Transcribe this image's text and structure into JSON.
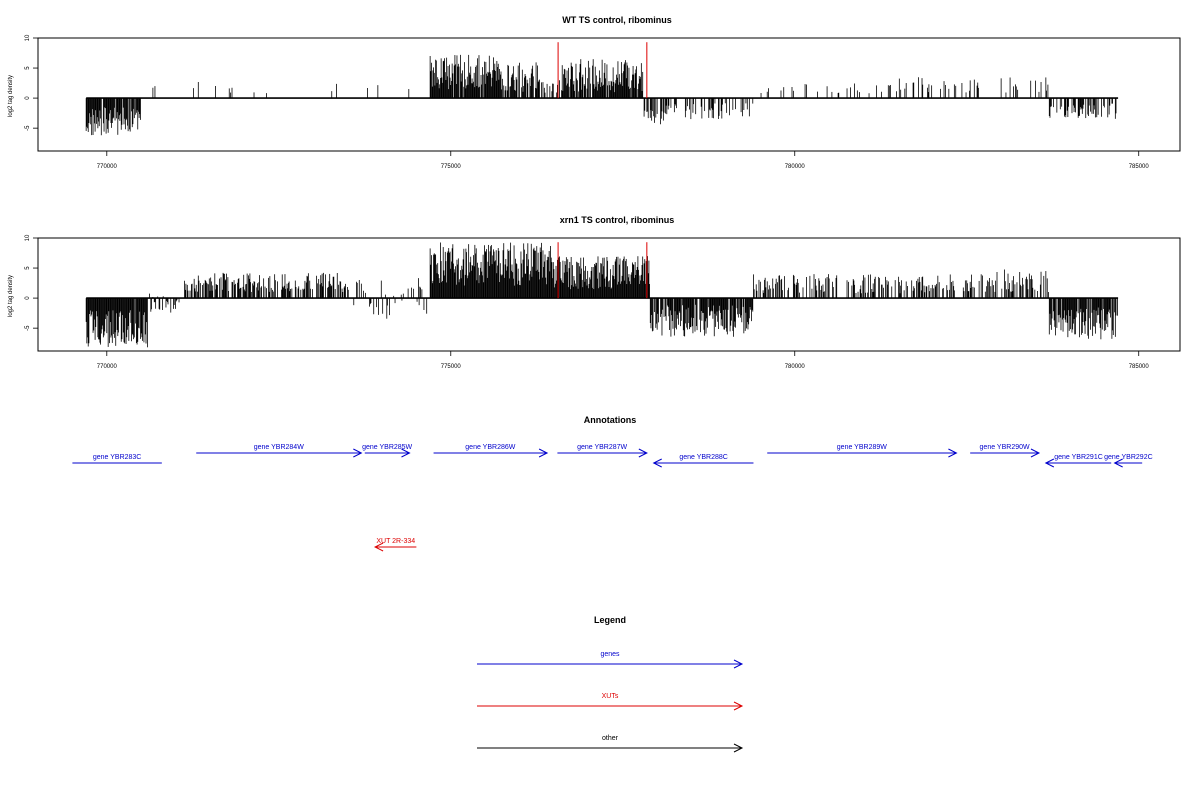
{
  "chart_data": [
    {
      "type": "bar",
      "title": "WT TS control, ribominus",
      "xlabel": "",
      "ylabel": "log2 tag density",
      "xlim": [
        769000,
        785600
      ],
      "ylim": [
        -8.8,
        10
      ],
      "x_ticks": [
        "770000",
        "775000",
        "780000",
        "785000"
      ],
      "y_ticks": [
        "10",
        "5",
        "0",
        "-5"
      ],
      "data_range": [
        769700,
        784700
      ],
      "markers": [
        776560,
        777850
      ],
      "marker_color": "#dd0000",
      "marker_height": 9.3,
      "regions": [
        {
          "start": 769700,
          "end": 770500,
          "density": 0.9,
          "min": -6.5,
          "max": -1.5
        },
        {
          "start": 770500,
          "end": 774700,
          "density": 0.04,
          "min": 0.8,
          "max": 2.8
        },
        {
          "start": 774700,
          "end": 775700,
          "density": 0.95,
          "min": 1.5,
          "max": 7.2
        },
        {
          "start": 775700,
          "end": 776300,
          "density": 0.8,
          "min": 1.0,
          "max": 6.0
        },
        {
          "start": 776300,
          "end": 776600,
          "density": 0.3,
          "min": 0.5,
          "max": 3.0
        },
        {
          "start": 776600,
          "end": 777800,
          "density": 0.85,
          "min": 1.0,
          "max": 6.5
        },
        {
          "start": 777800,
          "end": 778100,
          "density": 0.6,
          "min": -4.5,
          "max": -1.0
        },
        {
          "start": 778100,
          "end": 779400,
          "density": 0.35,
          "min": -3.5,
          "max": -0.8
        },
        {
          "start": 779400,
          "end": 781500,
          "density": 0.12,
          "min": 0.8,
          "max": 2.5
        },
        {
          "start": 781500,
          "end": 783700,
          "density": 0.18,
          "min": 0.8,
          "max": 3.5
        },
        {
          "start": 783700,
          "end": 784700,
          "density": 0.55,
          "min": -3.5,
          "max": -0.8
        }
      ]
    },
    {
      "type": "bar",
      "title": "xrn1 TS control, ribominus",
      "xlabel": "",
      "ylabel": "log2 tag density",
      "xlim": [
        769000,
        785600
      ],
      "ylim": [
        -8.8,
        10
      ],
      "x_ticks": [
        "770000",
        "775000",
        "780000",
        "785000"
      ],
      "y_ticks": [
        "10",
        "5",
        "0",
        "-5"
      ],
      "data_range": [
        769700,
        784700
      ],
      "markers": [
        776560,
        777850
      ],
      "marker_color": "#dd0000",
      "marker_height": 9.3,
      "regions": [
        {
          "start": 769700,
          "end": 770600,
          "density": 0.95,
          "min": -8.2,
          "max": -2.0
        },
        {
          "start": 770600,
          "end": 771100,
          "density": 0.5,
          "min": -2.5,
          "max": 1.5
        },
        {
          "start": 771100,
          "end": 773500,
          "density": 0.55,
          "min": 1.0,
          "max": 4.2
        },
        {
          "start": 773500,
          "end": 774700,
          "density": 0.4,
          "min": -3.5,
          "max": 3.5
        },
        {
          "start": 774700,
          "end": 776500,
          "density": 1.0,
          "min": 2.0,
          "max": 9.3
        },
        {
          "start": 776500,
          "end": 777900,
          "density": 1.0,
          "min": 1.5,
          "max": 7.0
        },
        {
          "start": 777900,
          "end": 779400,
          "density": 0.85,
          "min": -6.5,
          "max": -1.0
        },
        {
          "start": 779400,
          "end": 782800,
          "density": 0.45,
          "min": 0.8,
          "max": 4.0
        },
        {
          "start": 782800,
          "end": 783700,
          "density": 0.55,
          "min": 1.0,
          "max": 4.8
        },
        {
          "start": 783700,
          "end": 784700,
          "density": 0.9,
          "min": -7.0,
          "max": -1.5
        }
      ]
    }
  ],
  "annotations": {
    "title": "Annotations",
    "genes_color": "#0000cc",
    "xuts_color": "#dd0000",
    "features": [
      {
        "label": "gene YBR283C",
        "start": 769500,
        "end": 770800,
        "strand": "-",
        "kind": "gene",
        "row": 0
      },
      {
        "label": "gene YBR284W",
        "start": 771300,
        "end": 773700,
        "strand": "+",
        "kind": "gene",
        "row": 1
      },
      {
        "label": "gene YBR285W",
        "start": 773750,
        "end": 774400,
        "strand": "+",
        "kind": "gene",
        "row": 1
      },
      {
        "label": "gene YBR286W",
        "start": 774750,
        "end": 776400,
        "strand": "+",
        "kind": "gene",
        "row": 1
      },
      {
        "label": "gene YBR287W",
        "start": 776550,
        "end": 777850,
        "strand": "+",
        "kind": "gene",
        "row": 1
      },
      {
        "label": "gene YBR288C",
        "start": 777950,
        "end": 779400,
        "strand": "-",
        "kind": "gene",
        "row": 0
      },
      {
        "label": "gene YBR289W",
        "start": 779600,
        "end": 782350,
        "strand": "+",
        "kind": "gene",
        "row": 1
      },
      {
        "label": "gene YBR290W",
        "start": 782550,
        "end": 783550,
        "strand": "+",
        "kind": "gene",
        "row": 1
      },
      {
        "label": "gene YBR291C",
        "start": 783650,
        "end": 784600,
        "strand": "-",
        "kind": "gene",
        "row": 0
      },
      {
        "label": "gene YBR292C",
        "start": 784650,
        "end": 785050,
        "strand": "-",
        "kind": "gene",
        "row": 0
      },
      {
        "label": "XUT 2R-334",
        "start": 773900,
        "end": 774500,
        "strand": "-",
        "kind": "xut",
        "row": 3
      }
    ]
  },
  "legend": {
    "title": "Legend",
    "items": [
      {
        "label": "genes",
        "color": "#0000cc"
      },
      {
        "label": "XUTs",
        "color": "#dd0000"
      },
      {
        "label": "other",
        "color": "#000000"
      }
    ]
  }
}
